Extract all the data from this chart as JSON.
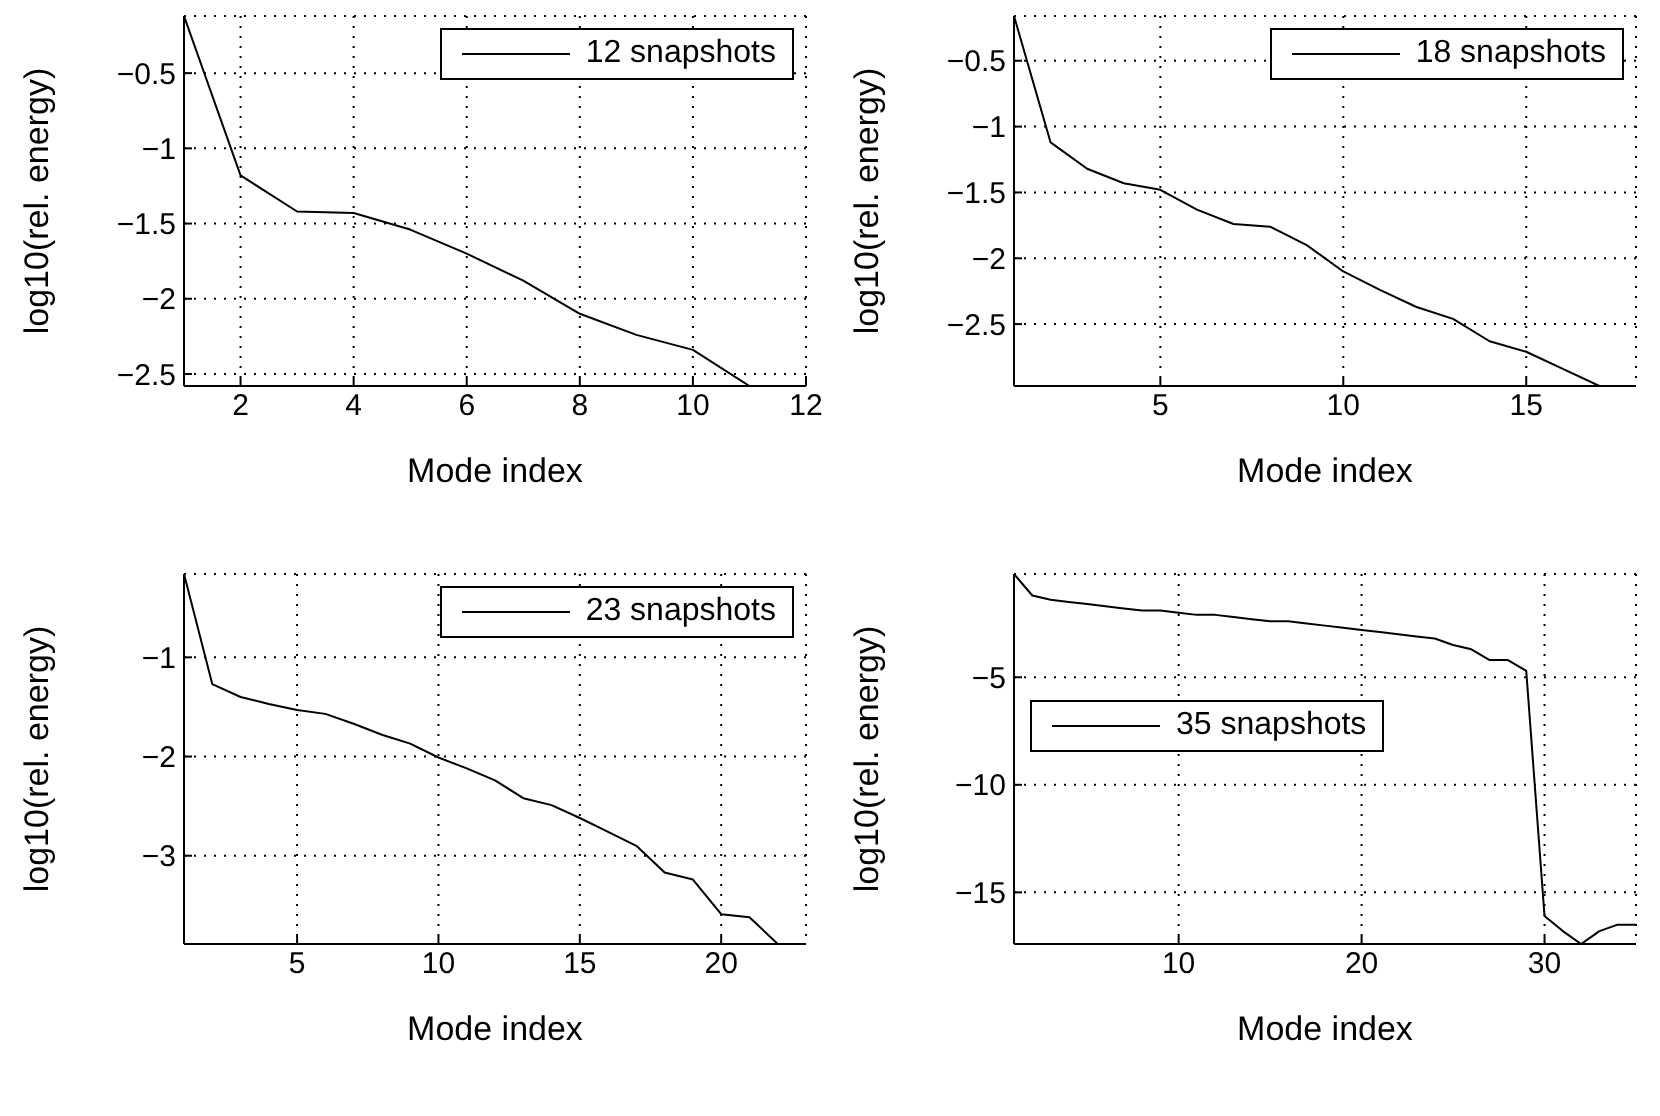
{
  "chart_data": [
    {
      "type": "line",
      "xlabel": "Mode index",
      "ylabel": "log10(rel. energy)",
      "xlim": [
        1,
        12
      ],
      "xticks": [
        2,
        4,
        6,
        8,
        10,
        12
      ],
      "ylim": [
        -2.58,
        -0.12
      ],
      "yticks": [
        -2.5,
        -2,
        -1.5,
        -1,
        -0.5
      ],
      "grid": true,
      "legend": "top right",
      "series": [
        {
          "name": "12 snapshots",
          "color": "#000000",
          "x": [
            1,
            2,
            3,
            4,
            5,
            6,
            7,
            8,
            9,
            10,
            11
          ],
          "values": [
            -0.12,
            -1.18,
            -1.42,
            -1.43,
            -1.54,
            -1.7,
            -1.88,
            -2.1,
            -2.24,
            -2.34,
            -2.58
          ]
        }
      ]
    },
    {
      "type": "line",
      "xlabel": "Mode index",
      "ylabel": "log10(rel. energy)",
      "xlim": [
        1,
        18
      ],
      "xticks": [
        5,
        10,
        15
      ],
      "ylim": [
        -2.97,
        -0.16
      ],
      "yticks": [
        -2.5,
        -2,
        -1.5,
        -1,
        -0.5
      ],
      "grid": true,
      "legend": "top right",
      "series": [
        {
          "name": "18 snapshots",
          "color": "#000000",
          "x": [
            1,
            2,
            3,
            4,
            5,
            6,
            7,
            8,
            9,
            10,
            11,
            12,
            13,
            14,
            15,
            16,
            17
          ],
          "values": [
            -0.16,
            -1.12,
            -1.32,
            -1.43,
            -1.48,
            -1.63,
            -1.74,
            -1.76,
            -1.9,
            -2.1,
            -2.24,
            -2.37,
            -2.46,
            -2.63,
            -2.71,
            -2.84,
            -2.97
          ]
        }
      ]
    },
    {
      "type": "line",
      "xlabel": "Mode index",
      "ylabel": "log10(rel. energy)",
      "xlim": [
        1,
        23
      ],
      "xticks": [
        5,
        10,
        15,
        20
      ],
      "ylim": [
        -3.89,
        -0.16
      ],
      "yticks": [
        -3,
        -2,
        -1
      ],
      "grid": true,
      "legend": "top right",
      "series": [
        {
          "name": "23 snapshots",
          "color": "#000000",
          "x": [
            1,
            2,
            3,
            4,
            5,
            6,
            7,
            8,
            9,
            10,
            11,
            12,
            13,
            14,
            15,
            16,
            17,
            18,
            19,
            20,
            21,
            22
          ],
          "values": [
            -0.16,
            -1.27,
            -1.4,
            -1.47,
            -1.53,
            -1.57,
            -1.67,
            -1.78,
            -1.87,
            -2.01,
            -2.12,
            -2.24,
            -2.42,
            -2.49,
            -2.62,
            -2.76,
            -2.9,
            -3.17,
            -3.24,
            -3.59,
            -3.62,
            -3.89
          ]
        }
      ]
    },
    {
      "type": "line",
      "xlabel": "Mode index",
      "ylabel": "log10(rel. energy)",
      "xlim": [
        1,
        35
      ],
      "xticks": [
        10,
        20,
        30
      ],
      "ylim": [
        -17.4,
        -0.2
      ],
      "yticks": [
        -15,
        -10,
        -5
      ],
      "grid": true,
      "legend": "left",
      "series": [
        {
          "name": "35 snapshots",
          "color": "#000000",
          "x": [
            1,
            2,
            3,
            4,
            5,
            6,
            7,
            8,
            9,
            10,
            11,
            12,
            13,
            14,
            15,
            16,
            17,
            18,
            19,
            20,
            21,
            22,
            23,
            24,
            25,
            26,
            27,
            28,
            29,
            30,
            31,
            32,
            33,
            34,
            35
          ],
          "values": [
            -0.2,
            -1.2,
            -1.4,
            -1.5,
            -1.6,
            -1.7,
            -1.8,
            -1.9,
            -1.9,
            -2.0,
            -2.1,
            -2.1,
            -2.2,
            -2.3,
            -2.4,
            -2.4,
            -2.5,
            -2.6,
            -2.7,
            -2.8,
            -2.9,
            -3.0,
            -3.1,
            -3.2,
            -3.5,
            -3.7,
            -4.2,
            -4.2,
            -4.7,
            -16.1,
            -16.8,
            -17.4,
            -16.8,
            -16.5,
            -16.5
          ]
        }
      ]
    }
  ]
}
